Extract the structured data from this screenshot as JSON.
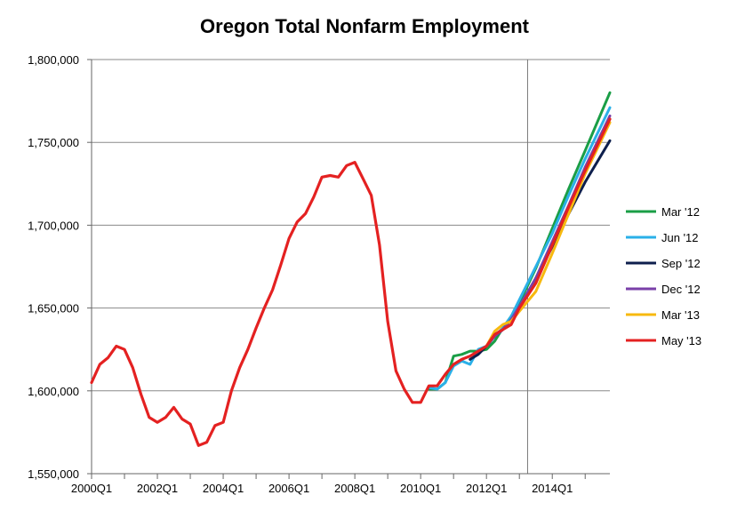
{
  "chart_data": {
    "type": "line",
    "title": "Oregon Total Nonfarm Employment",
    "xlabel": "",
    "ylabel": "",
    "ylim": [
      1550000,
      1800000
    ],
    "xlim": [
      2000.0,
      2015.75
    ],
    "y_ticks": [
      1550000,
      1600000,
      1650000,
      1700000,
      1750000,
      1800000
    ],
    "y_tick_labels": [
      "1,550,000",
      "1,600,000",
      "1,650,000",
      "1,700,000",
      "1,750,000",
      "1,800,000"
    ],
    "x_ticks": [
      2000,
      2002,
      2004,
      2006,
      2008,
      2010,
      2012,
      2014
    ],
    "x_tick_labels": [
      "2000Q1",
      "2002Q1",
      "2004Q1",
      "2006Q1",
      "2008Q1",
      "2010Q1",
      "2012Q1",
      "2014Q1"
    ],
    "forecast_marker_x": 2013.25,
    "grid": "horizontal",
    "legend_position": "right",
    "series": [
      {
        "name": "Mar '12",
        "color": "#1a9e46",
        "points": [
          [
            2010.25,
            1601000
          ],
          [
            2010.5,
            1601000
          ],
          [
            2010.75,
            1605000
          ],
          [
            2011.0,
            1621000
          ],
          [
            2011.25,
            1622000
          ],
          [
            2011.5,
            1624000
          ],
          [
            2011.75,
            1624000
          ],
          [
            2012.0,
            1625000
          ],
          [
            2012.25,
            1630000
          ],
          [
            2012.5,
            1638000
          ],
          [
            2012.75,
            1645000
          ],
          [
            2013.0,
            1653000
          ],
          [
            2013.5,
            1674000
          ],
          [
            2014.0,
            1698000
          ],
          [
            2014.5,
            1722000
          ],
          [
            2015.0,
            1745000
          ],
          [
            2015.75,
            1780000
          ]
        ]
      },
      {
        "name": "Jun '12",
        "color": "#2ab0e8",
        "points": [
          [
            2010.25,
            1602000
          ],
          [
            2010.5,
            1601000
          ],
          [
            2010.75,
            1605000
          ],
          [
            2011.0,
            1615000
          ],
          [
            2011.25,
            1618000
          ],
          [
            2011.5,
            1616000
          ],
          [
            2011.75,
            1625000
          ],
          [
            2012.0,
            1627000
          ],
          [
            2012.25,
            1633000
          ],
          [
            2012.5,
            1638000
          ],
          [
            2012.75,
            1645000
          ],
          [
            2013.0,
            1655000
          ],
          [
            2013.5,
            1675000
          ],
          [
            2014.0,
            1695000
          ],
          [
            2014.5,
            1718000
          ],
          [
            2015.0,
            1740000
          ],
          [
            2015.75,
            1771000
          ]
        ]
      },
      {
        "name": "Sep '12",
        "color": "#0e1f4d",
        "points": [
          [
            2011.5,
            1619000
          ],
          [
            2011.75,
            1622000
          ],
          [
            2012.0,
            1627000
          ],
          [
            2012.25,
            1633000
          ],
          [
            2012.5,
            1637000
          ],
          [
            2012.75,
            1643000
          ],
          [
            2013.0,
            1650000
          ],
          [
            2013.5,
            1668000
          ],
          [
            2014.0,
            1687000
          ],
          [
            2014.5,
            1707000
          ],
          [
            2015.0,
            1726000
          ],
          [
            2015.75,
            1751000
          ]
        ]
      },
      {
        "name": "Dec '12",
        "color": "#7a3fa8",
        "points": [
          [
            2012.0,
            1627000
          ],
          [
            2012.25,
            1633000
          ],
          [
            2012.5,
            1637000
          ],
          [
            2012.75,
            1643000
          ],
          [
            2013.0,
            1651000
          ],
          [
            2013.5,
            1668000
          ],
          [
            2014.0,
            1690000
          ],
          [
            2014.5,
            1712000
          ],
          [
            2015.0,
            1735000
          ],
          [
            2015.75,
            1766000
          ]
        ]
      },
      {
        "name": "Mar '13",
        "color": "#f7b90f",
        "points": [
          [
            2012.0,
            1627000
          ],
          [
            2012.25,
            1636000
          ],
          [
            2012.5,
            1640000
          ],
          [
            2012.75,
            1642000
          ],
          [
            2013.0,
            1648000
          ],
          [
            2013.5,
            1660000
          ],
          [
            2014.0,
            1683000
          ],
          [
            2014.5,
            1707000
          ],
          [
            2015.0,
            1731000
          ],
          [
            2015.75,
            1762000
          ]
        ]
      },
      {
        "name": "May '13",
        "color": "#e42121",
        "points": [
          [
            2000.0,
            1605000
          ],
          [
            2000.25,
            1616000
          ],
          [
            2000.5,
            1620000
          ],
          [
            2000.75,
            1627000
          ],
          [
            2001.0,
            1625000
          ],
          [
            2001.25,
            1614000
          ],
          [
            2001.5,
            1598000
          ],
          [
            2001.75,
            1584000
          ],
          [
            2002.0,
            1581000
          ],
          [
            2002.25,
            1584000
          ],
          [
            2002.5,
            1590000
          ],
          [
            2002.75,
            1583000
          ],
          [
            2003.0,
            1580000
          ],
          [
            2003.25,
            1567000
          ],
          [
            2003.5,
            1569000
          ],
          [
            2003.75,
            1579000
          ],
          [
            2004.0,
            1581000
          ],
          [
            2004.25,
            1600000
          ],
          [
            2004.5,
            1614000
          ],
          [
            2004.75,
            1625000
          ],
          [
            2005.0,
            1638000
          ],
          [
            2005.25,
            1650000
          ],
          [
            2005.5,
            1661000
          ],
          [
            2005.75,
            1676000
          ],
          [
            2006.0,
            1692000
          ],
          [
            2006.25,
            1702000
          ],
          [
            2006.5,
            1707000
          ],
          [
            2006.75,
            1717000
          ],
          [
            2007.0,
            1729000
          ],
          [
            2007.25,
            1730000
          ],
          [
            2007.5,
            1729000
          ],
          [
            2007.75,
            1736000
          ],
          [
            2008.0,
            1738000
          ],
          [
            2008.25,
            1728000
          ],
          [
            2008.5,
            1718000
          ],
          [
            2008.75,
            1688000
          ],
          [
            2009.0,
            1642000
          ],
          [
            2009.25,
            1612000
          ],
          [
            2009.5,
            1601000
          ],
          [
            2009.75,
            1593000
          ],
          [
            2010.0,
            1593000
          ],
          [
            2010.25,
            1603000
          ],
          [
            2010.5,
            1603000
          ],
          [
            2010.75,
            1610000
          ],
          [
            2011.0,
            1616000
          ],
          [
            2011.25,
            1619000
          ],
          [
            2011.5,
            1621000
          ],
          [
            2011.75,
            1624000
          ],
          [
            2012.0,
            1627000
          ],
          [
            2012.25,
            1634000
          ],
          [
            2012.5,
            1637000
          ],
          [
            2012.75,
            1640000
          ],
          [
            2013.0,
            1650000
          ],
          [
            2013.5,
            1665000
          ],
          [
            2014.0,
            1688000
          ],
          [
            2014.5,
            1711000
          ],
          [
            2015.0,
            1733000
          ],
          [
            2015.75,
            1764000
          ]
        ]
      }
    ]
  }
}
